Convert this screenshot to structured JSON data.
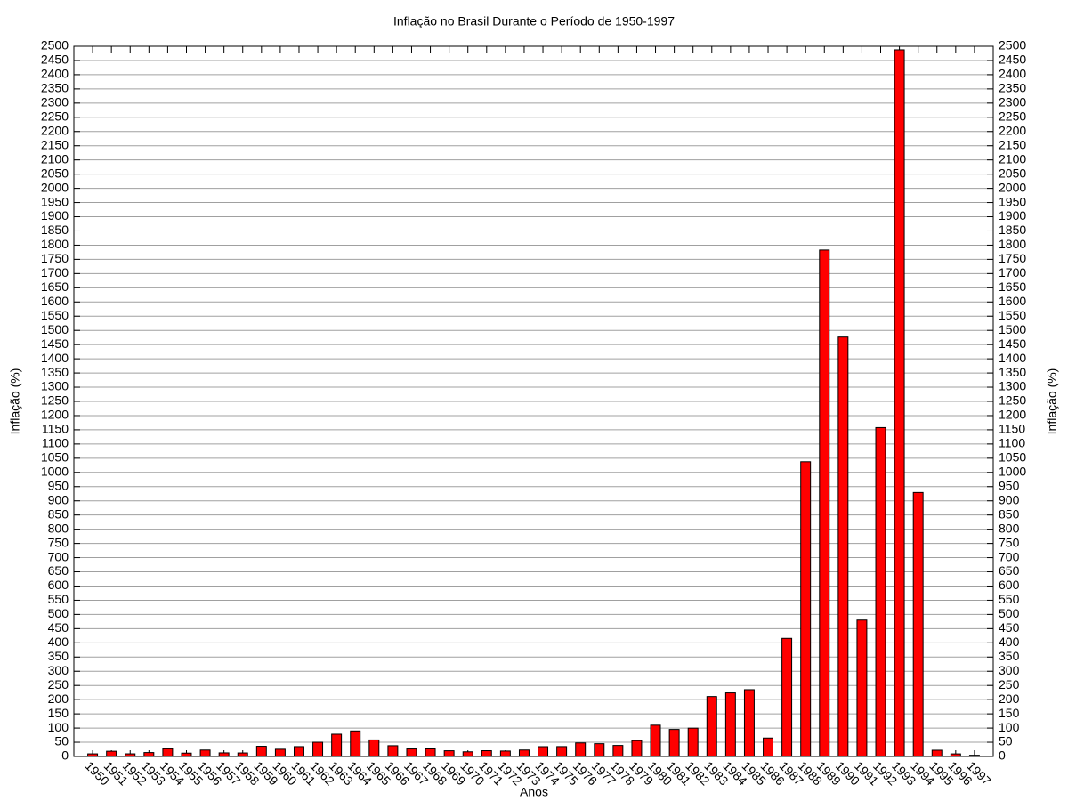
{
  "chart_data": {
    "type": "bar",
    "title": "Inflação no Brasil Durante o Período de 1950-1997",
    "x_label": "Anos",
    "y_label": "Inflação (%)",
    "categories": [
      "1950",
      "1951",
      "1952",
      "1953",
      "1954",
      "1955",
      "1956",
      "1957",
      "1958",
      "1959",
      "1960",
      "1961",
      "1962",
      "1963",
      "1964",
      "1965",
      "1966",
      "1967",
      "1968",
      "1969",
      "1970",
      "1971",
      "1972",
      "1973",
      "1974",
      "1975",
      "1976",
      "1977",
      "1978",
      "1979",
      "1980",
      "1981",
      "1982",
      "1983",
      "1984",
      "1985",
      "1986",
      "1987",
      "1988",
      "1989",
      "1990",
      "1991",
      "1992",
      "1993",
      "1994",
      "1995",
      "1996",
      "1997"
    ],
    "values": [
      9.2,
      18.4,
      9.3,
      13.8,
      27.1,
      11.8,
      22.6,
      12.7,
      12.4,
      35.9,
      25.4,
      34.7,
      50.1,
      78.4,
      89.9,
      58.2,
      37.9,
      26.5,
      26.7,
      20.1,
      16.4,
      20.3,
      19.1,
      22.7,
      34.5,
      34.8,
      47.7,
      45,
      38.8,
      55.8,
      110.2,
      95.2,
      99.7,
      211,
      223.8,
      235.1,
      65,
      415.8,
      1037.6,
      1782.9,
      1476.6,
      480.2,
      1157.8,
      2487.6,
      929.3,
      22,
      9.1,
      4.3
    ],
    "color": "#ff0000",
    "ylim": [
      0,
      2500
    ],
    "yticks": [
      0,
      50,
      100,
      150,
      200,
      250,
      300,
      350,
      400,
      450,
      500,
      550,
      600,
      650,
      700,
      750,
      800,
      850,
      900,
      950,
      1000,
      1050,
      1100,
      1150,
      1200,
      1250,
      1300,
      1350,
      1400,
      1450,
      1500,
      1550,
      1600,
      1650,
      1700,
      1750,
      1800,
      1850,
      1900,
      1950,
      2000,
      2050,
      2100,
      2150,
      2200,
      2250,
      2300,
      2350,
      2400,
      2450,
      2500
    ],
    "grid": true
  }
}
